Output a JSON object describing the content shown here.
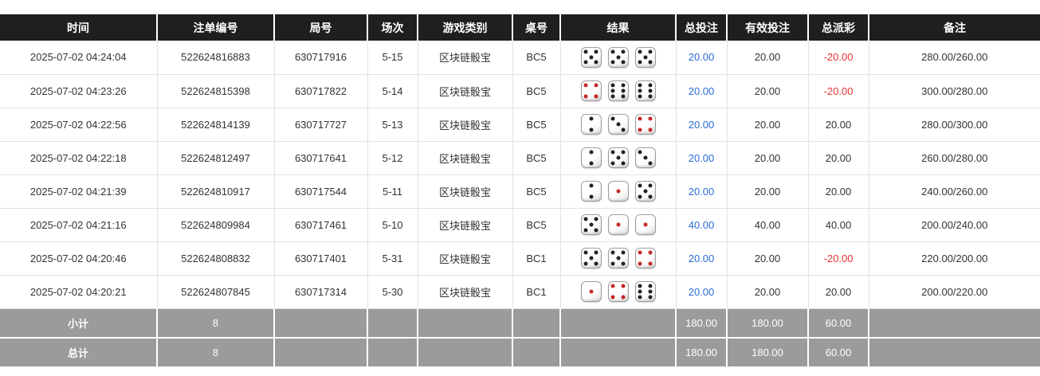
{
  "table": {
    "columns": [
      {
        "key": "time",
        "label": "时间"
      },
      {
        "key": "bet_id",
        "label": "注单编号"
      },
      {
        "key": "round_id",
        "label": "局号"
      },
      {
        "key": "session",
        "label": "场次"
      },
      {
        "key": "game_type",
        "label": "游戏类别"
      },
      {
        "key": "table_no",
        "label": "桌号"
      },
      {
        "key": "result",
        "label": "结果"
      },
      {
        "key": "total_bet",
        "label": "总投注"
      },
      {
        "key": "valid_bet",
        "label": "有效投注"
      },
      {
        "key": "payout",
        "label": "总派彩"
      },
      {
        "key": "remark",
        "label": "备注"
      }
    ],
    "rows": [
      {
        "time": "2025-07-02 04:24:04",
        "bet_id": "522624816883",
        "round_id": "630717916",
        "session": "5-15",
        "game_type": "区块链骰宝",
        "table_no": "BC5",
        "dice": [
          5,
          5,
          5
        ],
        "total_bet": "20.00",
        "valid_bet": "20.00",
        "payout": "-20.00",
        "remark": "280.00/260.00"
      },
      {
        "time": "2025-07-02 04:23:26",
        "bet_id": "522624815398",
        "round_id": "630717822",
        "session": "5-14",
        "game_type": "区块链骰宝",
        "table_no": "BC5",
        "dice": [
          4,
          6,
          6
        ],
        "total_bet": "20.00",
        "valid_bet": "20.00",
        "payout": "-20.00",
        "remark": "300.00/280.00"
      },
      {
        "time": "2025-07-02 04:22:56",
        "bet_id": "522624814139",
        "round_id": "630717727",
        "session": "5-13",
        "game_type": "区块链骰宝",
        "table_no": "BC5",
        "dice": [
          2,
          3,
          4
        ],
        "total_bet": "20.00",
        "valid_bet": "20.00",
        "payout": "20.00",
        "remark": "280.00/300.00"
      },
      {
        "time": "2025-07-02 04:22:18",
        "bet_id": "522624812497",
        "round_id": "630717641",
        "session": "5-12",
        "game_type": "区块链骰宝",
        "table_no": "BC5",
        "dice": [
          2,
          5,
          3
        ],
        "total_bet": "20.00",
        "valid_bet": "20.00",
        "payout": "20.00",
        "remark": "260.00/280.00"
      },
      {
        "time": "2025-07-02 04:21:39",
        "bet_id": "522624810917",
        "round_id": "630717544",
        "session": "5-11",
        "game_type": "区块链骰宝",
        "table_no": "BC5",
        "dice": [
          2,
          1,
          5
        ],
        "total_bet": "20.00",
        "valid_bet": "20.00",
        "payout": "20.00",
        "remark": "240.00/260.00"
      },
      {
        "time": "2025-07-02 04:21:16",
        "bet_id": "522624809984",
        "round_id": "630717461",
        "session": "5-10",
        "game_type": "区块链骰宝",
        "table_no": "BC5",
        "dice": [
          5,
          1,
          1
        ],
        "total_bet": "40.00",
        "valid_bet": "40.00",
        "payout": "40.00",
        "remark": "200.00/240.00"
      },
      {
        "time": "2025-07-02 04:20:46",
        "bet_id": "522624808832",
        "round_id": "630717401",
        "session": "5-31",
        "game_type": "区块链骰宝",
        "table_no": "BC1",
        "dice": [
          5,
          5,
          4
        ],
        "total_bet": "20.00",
        "valid_bet": "20.00",
        "payout": "-20.00",
        "remark": "220.00/200.00"
      },
      {
        "time": "2025-07-02 04:20:21",
        "bet_id": "522624807845",
        "round_id": "630717314",
        "session": "5-30",
        "game_type": "区块链骰宝",
        "table_no": "BC1",
        "dice": [
          1,
          4,
          6
        ],
        "total_bet": "20.00",
        "valid_bet": "20.00",
        "payout": "20.00",
        "remark": "200.00/220.00"
      }
    ],
    "footer_rows": [
      {
        "label": "小计",
        "count": "8",
        "total_bet": "180.00",
        "valid_bet": "180.00",
        "payout": "60.00",
        "remark": ""
      },
      {
        "label": "总计",
        "count": "8",
        "total_bet": "180.00",
        "valid_bet": "180.00",
        "payout": "60.00",
        "remark": ""
      }
    ]
  },
  "colors": {
    "header_bg": "#1f1f1f",
    "header_text": "#ffffff",
    "bet_amount_blue": "#2b6cd9",
    "negative_red": "#e63333",
    "footer_bg": "#9b9b9b",
    "dice_pip_black": "#222222",
    "dice_pip_red": "#c62828"
  }
}
